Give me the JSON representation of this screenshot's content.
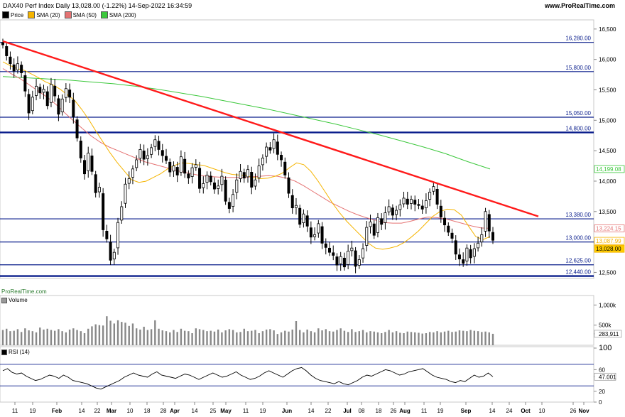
{
  "header": {
    "title": "DAX40 Perf Index Daily 13,028.00 (-1.22%) 14-Sep-2022 16:34:59",
    "site": "www.ProRealTime.com",
    "watermark": "ProRealTime.com"
  },
  "legend": [
    {
      "label": "Price",
      "color": "#000000"
    },
    {
      "label": "SMA (20)",
      "color": "#f5b400"
    },
    {
      "label": "SMA (50)",
      "color": "#e57373"
    },
    {
      "label": "SMA (200)",
      "color": "#3cc83c"
    }
  ],
  "chart_data": [
    {
      "type": "candlestick",
      "ylim": [
        12400,
        16650
      ],
      "y_ticks": [
        "16,500",
        "16,000",
        "15,500",
        "15,000",
        "14,500",
        "14,000",
        "13,500",
        "13,000",
        "12,500"
      ],
      "x_tick_labels": [
        "11",
        "19",
        "Feb",
        "14",
        "22",
        "Mar",
        "10",
        "18",
        "28",
        "Apr",
        "14",
        "25",
        "May",
        "11",
        "19",
        "Jun",
        "14",
        "22",
        "Jul",
        "08",
        "18",
        "26",
        "Aug",
        "11",
        "19",
        "Sep",
        "14",
        "24",
        "Oct",
        "10",
        "26",
        "Nov"
      ],
      "horizontal_levels": [
        {
          "label": "16,280.00",
          "value": 16280
        },
        {
          "label": "15,800.00",
          "value": 15800
        },
        {
          "label": "15,050.00",
          "value": 15050
        },
        {
          "label": "14,800.00",
          "value": 14800
        },
        {
          "label": "13,380.00",
          "value": 13380
        },
        {
          "label": "13,000.00",
          "value": 13000
        },
        {
          "label": "12,625.00",
          "value": 12625
        },
        {
          "label": "12,440.00",
          "value": 12440
        }
      ],
      "trendline": {
        "from": [
          "2022-01-05",
          16300
        ],
        "to": [
          "2022-10-05",
          13420
        ]
      },
      "price_tags": [
        {
          "label": "14,199.08",
          "value": 14199.08,
          "color": "#3cc83c"
        },
        {
          "label": "13,224.15",
          "value": 13224.15,
          "color": "#e57373"
        },
        {
          "label": "13,087.99",
          "value": 13087.99,
          "color": "#f5b400"
        },
        {
          "label": "13,028.00",
          "value": 13028,
          "color": "#f5b400"
        }
      ],
      "price_series": [
        16240,
        16060,
        15930,
        15810,
        15930,
        15780,
        15480,
        15120,
        15380,
        15560,
        15450,
        15510,
        15240,
        15590,
        15400,
        15100,
        15350,
        15520,
        15380,
        15060,
        14710,
        14380,
        14120,
        14460,
        14160,
        13810,
        13900,
        13200,
        13050,
        12700,
        12830,
        13320,
        13580,
        13950,
        14040,
        14200,
        14350,
        14520,
        14360,
        14420,
        14550,
        14680,
        14520,
        14420,
        14340,
        14150,
        14250,
        14100,
        14400,
        14130,
        14050,
        14220,
        14270,
        13880,
        13960,
        14100,
        13990,
        13870,
        13920,
        14080,
        13670,
        13550,
        13780,
        14020,
        14160,
        14050,
        14190,
        13900,
        14020,
        14250,
        14380,
        14560,
        14510,
        14680,
        14440,
        14350,
        14100,
        13800,
        13560,
        13600,
        13290,
        13460,
        13260,
        13080,
        13120,
        13300,
        12980,
        12910,
        12830,
        12780,
        12620,
        12760,
        12590,
        12850,
        12900,
        12600,
        12710,
        12890,
        13240,
        13330,
        13110,
        13400,
        13290,
        13480,
        13580,
        13440,
        13520,
        13610,
        13720,
        13620,
        13700,
        13620,
        13600,
        13540,
        13680,
        13820,
        13910,
        13620,
        13410,
        13280,
        13160,
        13060,
        12800,
        12720,
        12650,
        12900,
        12740,
        12890,
        12980,
        13120,
        13500,
        13180,
        13028
      ],
      "sma20_series": [
        15960,
        15900,
        15850,
        15820,
        15760,
        15700,
        15630,
        15580,
        15510,
        15420,
        15330,
        15180,
        15010,
        14820,
        14640,
        14460,
        14300,
        14160,
        14020,
        13980,
        14000,
        14060,
        14120,
        14200,
        14260,
        14300,
        14290,
        14270,
        14260,
        14220,
        14180,
        14140,
        14110,
        14100,
        14090,
        14060,
        14040,
        14050,
        14080,
        14130,
        14220,
        14300,
        14270,
        14160,
        14000,
        13820,
        13640,
        13480,
        13340,
        13220,
        13100,
        12980,
        12900,
        12880,
        12900,
        12930,
        12990,
        13080,
        13180,
        13300,
        13420,
        13500,
        13540,
        13530,
        13440,
        13260,
        13090,
        13040,
        13088
      ],
      "sma50_series": [
        15850,
        15760,
        15680,
        15580,
        15480,
        15380,
        15260,
        15120,
        14990,
        14860,
        14740,
        14640,
        14560,
        14500,
        14440,
        14380,
        14320,
        14280,
        14240,
        14200,
        14160,
        14130,
        14100,
        14080,
        14070,
        14060,
        14060,
        14060,
        14070,
        14080,
        14090,
        14080,
        14050,
        14000,
        13920,
        13830,
        13740,
        13650,
        13580,
        13510,
        13450,
        13400,
        13360,
        13320,
        13310,
        13310,
        13340,
        13380,
        13410,
        13400,
        13380,
        13340,
        13300,
        13260,
        13230,
        13224
      ],
      "sma200_series": [
        15720,
        15700,
        15680,
        15660,
        15630,
        15600,
        15560,
        15510,
        15450,
        15390,
        15320,
        15250,
        15180,
        15100,
        15020,
        14940,
        14850,
        14760,
        14660,
        14560,
        14450,
        14320,
        14199
      ],
      "ticker_text": "Price"
    },
    {
      "type": "bar",
      "title": "Volume",
      "y_ticks": [
        "1,000k",
        "500k",
        "283,911"
      ],
      "ylim": [
        0,
        1200000
      ],
      "values": [
        380000,
        410000,
        350000,
        360000,
        400000,
        330000,
        420000,
        370000,
        350000,
        320000,
        440000,
        390000,
        410000,
        380000,
        360000,
        400000,
        350000,
        320000,
        390000,
        420000,
        380000,
        350000,
        300000,
        410000,
        470000,
        520000,
        500000,
        490000,
        720000,
        610000,
        540000,
        620000,
        580000,
        560000,
        480000,
        540000,
        420000,
        390000,
        460000,
        380000,
        400000,
        620000,
        410000,
        370000,
        350000,
        320000,
        380000,
        330000,
        410000,
        360000,
        350000,
        300000,
        420000,
        400000,
        380000,
        350000,
        360000,
        340000,
        390000,
        320000,
        370000,
        400000,
        380000,
        320000,
        330000,
        410000,
        350000,
        360000,
        380000,
        300000,
        350000,
        390000,
        400000,
        370000,
        280000,
        320000,
        360000,
        340000,
        390000,
        600000,
        380000,
        320000,
        390000,
        350000,
        320000,
        420000,
        370000,
        400000,
        350000,
        340000,
        380000,
        420000,
        360000,
        330000,
        400000,
        330000,
        350000,
        380000,
        320000,
        350000,
        340000,
        320000,
        300000,
        330000,
        380000,
        320000,
        350000,
        310000,
        300000,
        340000,
        330000,
        320000,
        310000,
        290000,
        300000,
        330000,
        320000,
        350000,
        320000,
        340000,
        360000,
        330000,
        340000,
        370000,
        360000,
        350000,
        380000,
        360000,
        350000,
        330000,
        340000,
        320000,
        283911
      ]
    },
    {
      "type": "line",
      "title": "RSI (14)",
      "y_ticks": [
        "100",
        "60",
        "47.001",
        "20",
        "0"
      ],
      "ylim": [
        0,
        100
      ],
      "levels": [
        70,
        30
      ],
      "values": [
        58,
        62,
        55,
        52,
        54,
        48,
        44,
        40,
        42,
        46,
        50,
        48,
        44,
        50,
        46,
        40,
        38,
        36,
        34,
        30,
        26,
        24,
        28,
        32,
        36,
        40,
        46,
        50,
        54,
        50,
        48,
        46,
        52,
        56,
        50,
        48,
        46,
        44,
        48,
        52,
        50,
        46,
        42,
        46,
        50,
        54,
        50,
        46,
        48,
        52,
        56,
        50,
        46,
        42,
        44,
        48,
        54,
        58,
        54,
        50,
        46,
        52,
        58,
        62,
        64,
        58,
        50,
        44,
        40,
        38,
        36,
        34,
        38,
        34,
        32,
        36,
        40,
        46,
        50,
        48,
        52,
        56,
        60,
        58,
        54,
        50,
        52,
        56,
        58,
        60,
        62,
        56,
        50,
        46,
        44,
        42,
        38,
        36,
        40,
        38,
        44,
        50,
        46,
        48,
        54,
        47.001
      ]
    }
  ]
}
